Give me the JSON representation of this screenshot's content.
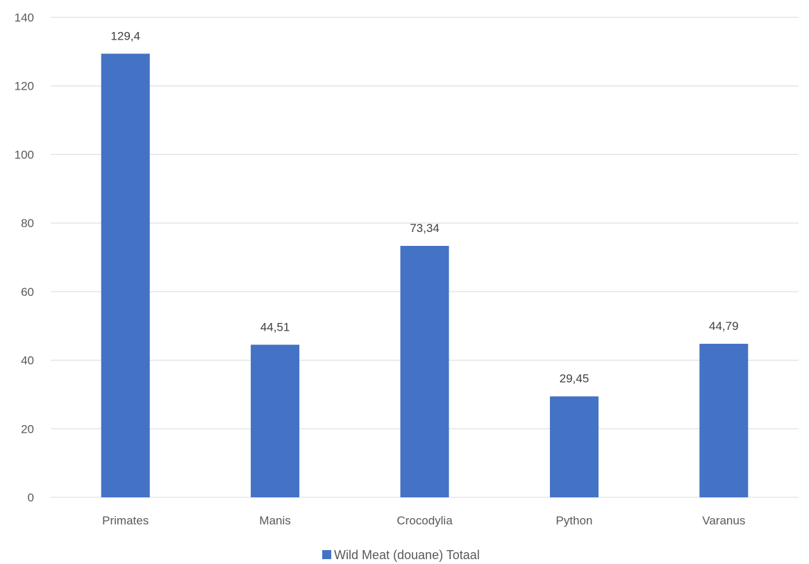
{
  "chart_data": {
    "type": "bar",
    "categories": [
      "Primates",
      "Manis",
      "Crocodylia",
      "Python",
      "Varanus"
    ],
    "series": [
      {
        "name": "Wild Meat (douane) Totaal",
        "values": [
          129.4,
          44.51,
          73.34,
          29.45,
          44.79
        ],
        "data_labels": [
          "129,4",
          "44,51",
          "73,34",
          "29,45",
          "44,79"
        ],
        "color": "#4472C4"
      }
    ],
    "title": "",
    "xlabel": "",
    "ylabel": "",
    "ylim": [
      0,
      140
    ],
    "yticks": [
      0,
      20,
      40,
      60,
      80,
      100,
      120,
      140
    ],
    "grid": true,
    "gridline_color": "#D9D9D9",
    "legend_position": "bottom"
  }
}
